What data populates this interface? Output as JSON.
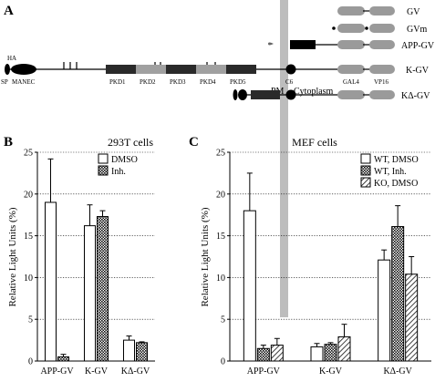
{
  "panel_a": {
    "letter": "A",
    "domain_labels": [
      "SP",
      "HA",
      "MANEC",
      "PKD1",
      "PKD2",
      "PKD3",
      "PKD4",
      "PKD5",
      "C6",
      "GAL4",
      "VP16"
    ],
    "membrane_labels": {
      "pm": "PM",
      "cytoplasm": "Cytoplasm"
    },
    "constructs": [
      "GV",
      "GVm",
      "APP-GV",
      "K-GV",
      "KΔ-GV"
    ]
  },
  "panels": [
    {
      "letter": "B",
      "title": "293T cells",
      "ylabel": "Relative Light Units (%)"
    },
    {
      "letter": "C",
      "title": "MEF cells",
      "ylabel": "Relative Light Units (%)"
    }
  ],
  "colors": {
    "gray": "#a0a0a0",
    "dark": "#2a2a2a",
    "pm_bar": "#bdbdbd"
  },
  "chart_data": [
    {
      "type": "bar",
      "title": "293T cells",
      "ylabel": "Relative Light Units (%)",
      "ylim": [
        0,
        25
      ],
      "yticks": [
        0,
        5,
        10,
        15,
        20,
        25
      ],
      "grid": "horizontal dotted",
      "legend": "top-right",
      "categories": [
        "APP-GV",
        "K-GV",
        "KΔ-GV"
      ],
      "series": [
        {
          "name": "DMSO",
          "pattern": "open",
          "values": [
            19.0,
            16.2,
            2.5
          ],
          "errors": [
            5.2,
            2.5,
            0.5
          ]
        },
        {
          "name": "Inh.",
          "pattern": "crosshatch",
          "values": [
            0.5,
            17.3,
            2.2
          ],
          "errors": [
            0.3,
            0.7,
            0.1
          ]
        }
      ]
    },
    {
      "type": "bar",
      "title": "MEF cells",
      "ylabel": "Relative Light Units (%)",
      "ylim": [
        0,
        25
      ],
      "yticks": [
        0,
        5,
        10,
        15,
        20,
        25
      ],
      "grid": "horizontal dotted",
      "legend": "top-right",
      "categories": [
        "APP-GV",
        "K-GV",
        "KΔ-GV"
      ],
      "series": [
        {
          "name": "WT, DMSO",
          "pattern": "open",
          "values": [
            18.0,
            1.7,
            12.1
          ],
          "errors": [
            4.5,
            0.4,
            1.2
          ]
        },
        {
          "name": "WT, Inh.",
          "pattern": "crosshatch",
          "values": [
            1.5,
            2.0,
            16.1
          ],
          "errors": [
            0.4,
            0.2,
            2.5
          ]
        },
        {
          "name": "KO, DMSO",
          "pattern": "diagonal",
          "values": [
            1.9,
            2.9,
            10.4
          ],
          "errors": [
            0.8,
            1.5,
            2.1
          ]
        }
      ]
    }
  ]
}
